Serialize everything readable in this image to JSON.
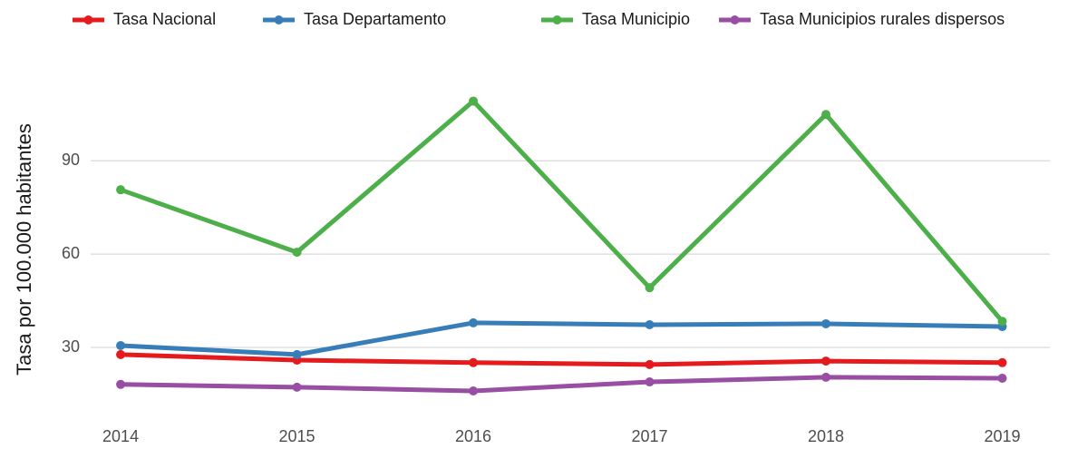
{
  "chart_data": {
    "type": "line",
    "y_label": "Tasa por 100.000 habitantes",
    "x": [
      2014,
      2015,
      2016,
      2017,
      2018,
      2019
    ],
    "xlim": [
      2013.83,
      2019.27
    ],
    "xticks": [
      2014,
      2015,
      2016,
      2017,
      2018,
      2019
    ],
    "ylim": [
      9,
      114
    ],
    "yticks": [
      30,
      60,
      90
    ],
    "grid": true,
    "legend": "top",
    "series": [
      {
        "name": "Tasa Nacional",
        "color": "#e41a1c",
        "values": [
          27.7,
          25.9,
          25.1,
          24.5,
          25.6,
          25.1
        ]
      },
      {
        "name": "Tasa Departamento",
        "color": "#377eb8",
        "values": [
          30.6,
          27.7,
          37.9,
          37.3,
          37.6,
          36.7
        ]
      },
      {
        "name": "Tasa Municipio",
        "color": "#4daf4a",
        "values": [
          80.7,
          60.6,
          109.2,
          49.2,
          104.9,
          38.4
        ]
      },
      {
        "name": "Tasa Municipios rurales dispersos",
        "color": "#984ea3",
        "values": [
          18.1,
          17.2,
          16.0,
          18.9,
          20.4,
          20.1
        ]
      }
    ]
  }
}
